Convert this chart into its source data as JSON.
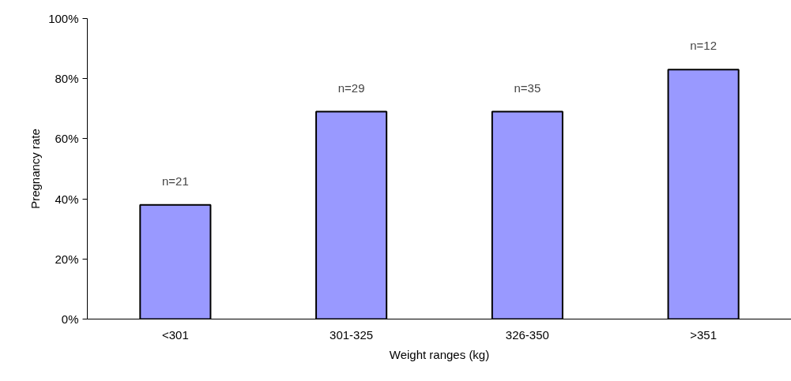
{
  "chart_data": {
    "type": "bar",
    "xlabel": "Weight ranges (kg)",
    "ylabel": "Pregnancy rate",
    "categories": [
      "<301",
      "301-325",
      "326-350",
      ">351"
    ],
    "values": [
      38,
      69,
      69,
      83
    ],
    "color": "#9999ff",
    "ylim": [
      0,
      100
    ],
    "yticks": [
      {
        "value": 0,
        "label": "0%"
      },
      {
        "value": 20,
        "label": "20%"
      },
      {
        "value": 40,
        "label": "40%"
      },
      {
        "value": 60,
        "label": "60%"
      },
      {
        "value": 80,
        "label": "80%"
      },
      {
        "value": 100,
        "label": "100%"
      }
    ],
    "grid": false,
    "annotations": [
      {
        "text": "n=21",
        "x": "<301",
        "y": 38
      },
      {
        "text": "n=29",
        "x": "301-325",
        "y": 69
      },
      {
        "text": "n=35",
        "x": "326-350",
        "y": 69
      },
      {
        "text": "n=12",
        "x": ">351",
        "y": 83
      }
    ]
  }
}
